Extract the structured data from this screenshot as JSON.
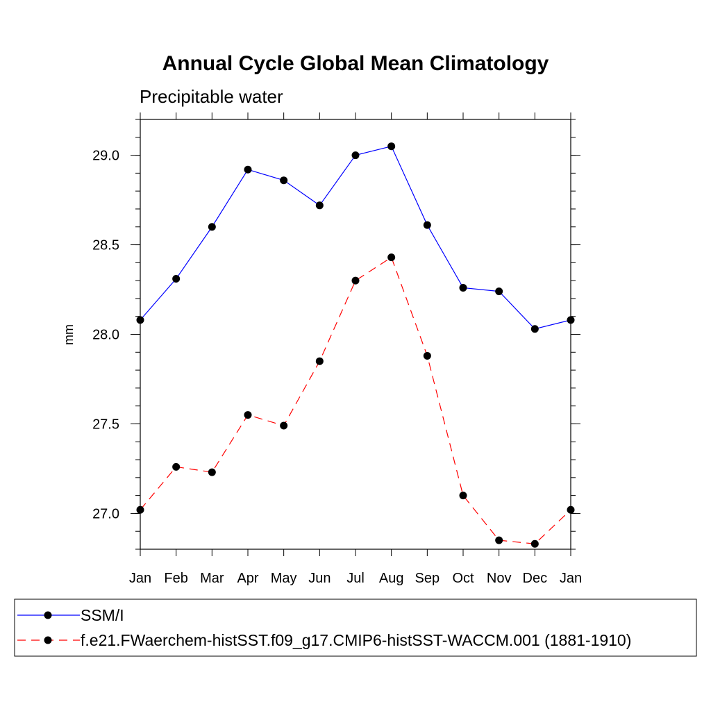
{
  "chart_data": {
    "type": "line",
    "title": "Annual Cycle Global Mean Climatology",
    "subtitle": "Precipitable water",
    "xlabel": "",
    "ylabel": "mm",
    "categories": [
      "Jan",
      "Feb",
      "Mar",
      "Apr",
      "May",
      "Jun",
      "Jul",
      "Aug",
      "Sep",
      "Oct",
      "Nov",
      "Dec",
      "Jan"
    ],
    "yticks": [
      "27.0",
      "27.5",
      "28.0",
      "28.5",
      "29.0"
    ],
    "ylim": [
      26.8,
      29.2
    ],
    "series": [
      {
        "name": "SSM/I",
        "color": "#0000ff",
        "dash": "solid",
        "values": [
          28.08,
          28.31,
          28.6,
          28.92,
          28.86,
          28.72,
          29.0,
          29.05,
          28.61,
          28.26,
          28.24,
          28.03,
          28.08
        ]
      },
      {
        "name": "f.e21.FWaerchem-histSST.f09_g17.CMIP6-histSST-WACCM.001 (1881-1910)",
        "color": "#ff0000",
        "dash": "dashed",
        "values": [
          27.02,
          27.26,
          27.23,
          27.55,
          27.49,
          27.85,
          28.3,
          28.43,
          27.88,
          27.1,
          26.85,
          26.83,
          27.02
        ]
      }
    ],
    "grid": false,
    "legend_position": "bottom"
  }
}
